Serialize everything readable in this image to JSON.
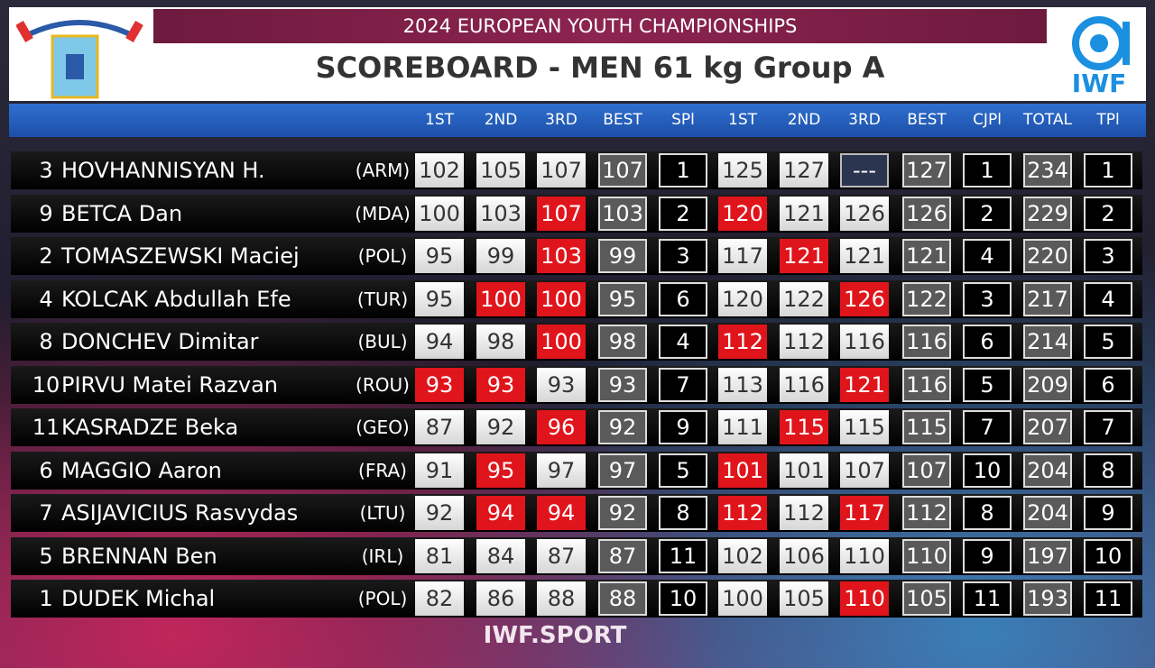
{
  "header": {
    "event": "2024 EUROPEAN YOUTH CHAMPIONSHIPS",
    "title": "SCOREBOARD - MEN 61 kg Group A",
    "logo_text": "IWF"
  },
  "columns": [
    "1ST",
    "2ND",
    "3RD",
    "BEST",
    "SPl",
    "1ST",
    "2ND",
    "3RD",
    "BEST",
    "CJPl",
    "TOTAL",
    "TPl"
  ],
  "rows": [
    {
      "lot": 3,
      "name": "HOVHANNISYAN H.",
      "country": "(ARM)",
      "snatch": [
        102,
        105,
        107
      ],
      "snatch_status": [
        "good",
        "good",
        "good"
      ],
      "snatch_best": 107,
      "snatch_place": 1,
      "cj": [
        125,
        127,
        "---"
      ],
      "cj_status": [
        "good",
        "good",
        "none"
      ],
      "cj_best": 127,
      "cj_place": 1,
      "total": 234,
      "total_place": 1
    },
    {
      "lot": 9,
      "name": "BETCA Dan",
      "country": "(MDA)",
      "snatch": [
        100,
        103,
        107
      ],
      "snatch_status": [
        "good",
        "good",
        "fail"
      ],
      "snatch_best": 103,
      "snatch_place": 2,
      "cj": [
        120,
        121,
        126
      ],
      "cj_status": [
        "fail",
        "good",
        "good"
      ],
      "cj_best": 126,
      "cj_place": 2,
      "total": 229,
      "total_place": 2
    },
    {
      "lot": 2,
      "name": "TOMASZEWSKI Maciej",
      "country": "(POL)",
      "snatch": [
        95,
        99,
        103
      ],
      "snatch_status": [
        "good",
        "good",
        "fail"
      ],
      "snatch_best": 99,
      "snatch_place": 3,
      "cj": [
        117,
        121,
        121
      ],
      "cj_status": [
        "good",
        "fail",
        "good"
      ],
      "cj_best": 121,
      "cj_place": 4,
      "total": 220,
      "total_place": 3
    },
    {
      "lot": 4,
      "name": "KOLCAK Abdullah Efe",
      "country": "(TUR)",
      "snatch": [
        95,
        100,
        100
      ],
      "snatch_status": [
        "good",
        "fail",
        "fail"
      ],
      "snatch_best": 95,
      "snatch_place": 6,
      "cj": [
        120,
        122,
        126
      ],
      "cj_status": [
        "good",
        "good",
        "fail"
      ],
      "cj_best": 122,
      "cj_place": 3,
      "total": 217,
      "total_place": 4
    },
    {
      "lot": 8,
      "name": "DONCHEV Dimitar",
      "country": "(BUL)",
      "snatch": [
        94,
        98,
        100
      ],
      "snatch_status": [
        "good",
        "good",
        "fail"
      ],
      "snatch_best": 98,
      "snatch_place": 4,
      "cj": [
        112,
        112,
        116
      ],
      "cj_status": [
        "fail",
        "good",
        "good"
      ],
      "cj_best": 116,
      "cj_place": 6,
      "total": 214,
      "total_place": 5
    },
    {
      "lot": 10,
      "name": "PIRVU Matei Razvan",
      "country": "(ROU)",
      "snatch": [
        93,
        93,
        93
      ],
      "snatch_status": [
        "fail",
        "fail",
        "good"
      ],
      "snatch_best": 93,
      "snatch_place": 7,
      "cj": [
        113,
        116,
        121
      ],
      "cj_status": [
        "good",
        "good",
        "fail"
      ],
      "cj_best": 116,
      "cj_place": 5,
      "total": 209,
      "total_place": 6
    },
    {
      "lot": 11,
      "name": "KASRADZE Beka",
      "country": "(GEO)",
      "snatch": [
        87,
        92,
        96
      ],
      "snatch_status": [
        "good",
        "good",
        "fail"
      ],
      "snatch_best": 92,
      "snatch_place": 9,
      "cj": [
        111,
        115,
        115
      ],
      "cj_status": [
        "good",
        "fail",
        "good"
      ],
      "cj_best": 115,
      "cj_place": 7,
      "total": 207,
      "total_place": 7
    },
    {
      "lot": 6,
      "name": "MAGGIO Aaron",
      "country": "(FRA)",
      "snatch": [
        91,
        95,
        97
      ],
      "snatch_status": [
        "good",
        "fail",
        "good"
      ],
      "snatch_best": 97,
      "snatch_place": 5,
      "cj": [
        101,
        101,
        107
      ],
      "cj_status": [
        "fail",
        "good",
        "good"
      ],
      "cj_best": 107,
      "cj_place": 10,
      "total": 204,
      "total_place": 8
    },
    {
      "lot": 7,
      "name": "ASIJAVICIUS Rasvydas",
      "country": "(LTU)",
      "snatch": [
        92,
        94,
        94
      ],
      "snatch_status": [
        "good",
        "fail",
        "fail"
      ],
      "snatch_best": 92,
      "snatch_place": 8,
      "cj": [
        112,
        112,
        117
      ],
      "cj_status": [
        "fail",
        "good",
        "fail"
      ],
      "cj_best": 112,
      "cj_place": 8,
      "total": 204,
      "total_place": 9
    },
    {
      "lot": 5,
      "name": "BRENNAN Ben",
      "country": "(IRL)",
      "snatch": [
        81,
        84,
        87
      ],
      "snatch_status": [
        "good",
        "good",
        "good"
      ],
      "snatch_best": 87,
      "snatch_place": 11,
      "cj": [
        102,
        106,
        110
      ],
      "cj_status": [
        "good",
        "good",
        "good"
      ],
      "cj_best": 110,
      "cj_place": 9,
      "total": 197,
      "total_place": 10
    },
    {
      "lot": 1,
      "name": "DUDEK Michal",
      "country": "(POL)",
      "snatch": [
        82,
        86,
        88
      ],
      "snatch_status": [
        "good",
        "good",
        "good"
      ],
      "snatch_best": 88,
      "snatch_place": 10,
      "cj": [
        100,
        105,
        110
      ],
      "cj_status": [
        "good",
        "good",
        "fail"
      ],
      "cj_best": 105,
      "cj_place": 11,
      "total": 193,
      "total_place": 11
    }
  ],
  "footer": "IWF.SPORT"
}
